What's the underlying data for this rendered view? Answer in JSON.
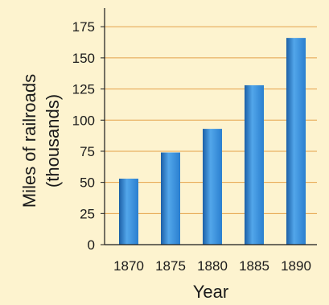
{
  "chart_data": {
    "type": "bar",
    "title": "",
    "categories": [
      "1870",
      "1875",
      "1880",
      "1885",
      "1890"
    ],
    "values": [
      53,
      74,
      93,
      128,
      166
    ],
    "xlabel": "Year",
    "ylabel_line1": "Miles of railroads",
    "ylabel_line2": "(thousands)",
    "yticks": [
      0,
      25,
      50,
      75,
      100,
      125,
      150,
      175
    ],
    "ylim": [
      0,
      190
    ],
    "grid": true,
    "legend": "none",
    "colors": {
      "background": "#fdf3cf",
      "bar": "#2a7fcf",
      "bar_light": "#52a6ea",
      "bar_dark": "#1b5fa6",
      "grid": "#e4a24a",
      "axis": "#1a1a1a"
    }
  }
}
